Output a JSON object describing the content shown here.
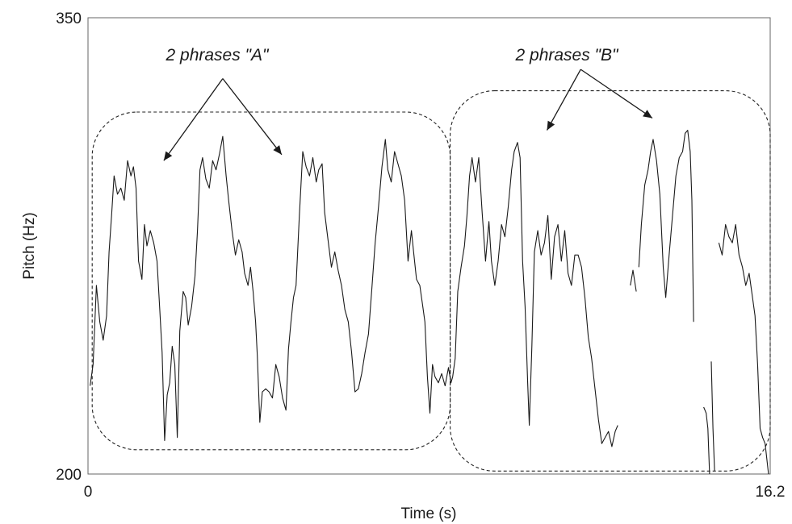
{
  "chart_data": {
    "type": "line",
    "xlabel": "Time (s)",
    "ylabel": "Pitch (Hz)",
    "xlim": [
      0,
      16.2
    ],
    "ylim": [
      200,
      350
    ],
    "x_ticks": [
      "0",
      "16.2"
    ],
    "y_ticks": [
      "200",
      "350"
    ],
    "grid": false,
    "legend": "none",
    "line_color": "#1a1a1a",
    "annotations": [
      {
        "text": "2 phrases \"A\"",
        "region_x": [
          0.1,
          8.6
        ],
        "region_y": [
          208,
          319
        ],
        "arrow_from": [
          3.2,
          330
        ],
        "arrow_targets": [
          [
            1.8,
            303
          ],
          [
            4.6,
            305
          ]
        ]
      },
      {
        "text": "2 phrases \"B\"",
        "region_x": [
          8.6,
          16.2
        ],
        "region_y": [
          201,
          326
        ],
        "arrow_from": [
          11.7,
          333
        ],
        "arrow_targets": [
          [
            10.9,
            313
          ],
          [
            13.4,
            317
          ]
        ]
      }
    ],
    "series": [
      {
        "segments": [
          [
            [
              0.05,
              229
            ],
            [
              0.12,
              236
            ],
            [
              0.2,
              262
            ],
            [
              0.28,
              250
            ],
            [
              0.36,
              244
            ],
            [
              0.44,
              252
            ],
            [
              0.5,
              273
            ],
            [
              0.56,
              285
            ],
            [
              0.62,
              298
            ],
            [
              0.7,
              292
            ],
            [
              0.78,
              294
            ],
            [
              0.86,
              290
            ],
            [
              0.94,
              303
            ],
            [
              1.02,
              298
            ],
            [
              1.08,
              301
            ],
            [
              1.14,
              294
            ],
            [
              1.2,
              270
            ],
            [
              1.28,
              264
            ],
            [
              1.34,
              282
            ],
            [
              1.4,
              275
            ],
            [
              1.48,
              280
            ],
            [
              1.56,
              276
            ],
            [
              1.64,
              270
            ],
            [
              1.7,
              255
            ],
            [
              1.76,
              240
            ],
            [
              1.82,
              211
            ],
            [
              1.88,
              226
            ],
            [
              1.94,
              230
            ],
            [
              2.0,
              242
            ],
            [
              2.06,
              236
            ],
            [
              2.12,
              212
            ],
            [
              2.18,
              247
            ],
            [
              2.26,
              260
            ],
            [
              2.32,
              258
            ],
            [
              2.38,
              249
            ],
            [
              2.46,
              255
            ],
            [
              2.54,
              265
            ],
            [
              2.6,
              280
            ],
            [
              2.66,
              300
            ],
            [
              2.72,
              304
            ],
            [
              2.8,
              297
            ],
            [
              2.88,
              294
            ],
            [
              2.96,
              303
            ],
            [
              3.04,
              300
            ],
            [
              3.12,
              305
            ],
            [
              3.2,
              311
            ],
            [
              3.28,
              298
            ],
            [
              3.34,
              290
            ],
            [
              3.42,
              280
            ],
            [
              3.5,
              272
            ],
            [
              3.58,
              277
            ],
            [
              3.66,
              273
            ],
            [
              3.72,
              266
            ],
            [
              3.8,
              262
            ],
            [
              3.86,
              268
            ],
            [
              3.92,
              260
            ],
            [
              3.98,
              250
            ],
            [
              4.02,
              239
            ],
            [
              4.08,
              217
            ],
            [
              4.14,
              227
            ],
            [
              4.22,
              228
            ],
            [
              4.3,
              227
            ],
            [
              4.38,
              225
            ],
            [
              4.46,
              236
            ],
            [
              4.54,
              232
            ],
            [
              4.62,
              225
            ],
            [
              4.7,
              221
            ],
            [
              4.76,
              241
            ],
            [
              4.82,
              250
            ],
            [
              4.88,
              258
            ],
            [
              4.94,
              262
            ],
            [
              5.02,
              285
            ],
            [
              5.1,
              306
            ],
            [
              5.18,
              301
            ],
            [
              5.26,
              298
            ],
            [
              5.34,
              304
            ],
            [
              5.42,
              296
            ],
            [
              5.48,
              300
            ],
            [
              5.56,
              302
            ],
            [
              5.62,
              286
            ],
            [
              5.7,
              277
            ],
            [
              5.78,
              268
            ],
            [
              5.86,
              273
            ],
            [
              5.94,
              267
            ],
            [
              6.02,
              262
            ],
            [
              6.1,
              254
            ],
            [
              6.18,
              250
            ],
            [
              6.26,
              240
            ],
            [
              6.34,
              227
            ],
            [
              6.42,
              228
            ],
            [
              6.5,
              233
            ],
            [
              6.58,
              240
            ],
            [
              6.66,
              246
            ],
            [
              6.74,
              261
            ],
            [
              6.82,
              276
            ],
            [
              6.9,
              288
            ],
            [
              6.98,
              301
            ],
            [
              7.06,
              310
            ],
            [
              7.12,
              300
            ],
            [
              7.2,
              296
            ],
            [
              7.28,
              306
            ],
            [
              7.36,
              302
            ],
            [
              7.44,
              298
            ],
            [
              7.52,
              290
            ],
            [
              7.6,
              270
            ],
            [
              7.68,
              280
            ],
            [
              7.74,
              272
            ],
            [
              7.8,
              264
            ],
            [
              7.88,
              262
            ],
            [
              7.94,
              256
            ],
            [
              8.0,
              250
            ],
            [
              8.06,
              232
            ],
            [
              8.12,
              220
            ],
            [
              8.18,
              236
            ],
            [
              8.24,
              232
            ],
            [
              8.32,
              230
            ],
            [
              8.4,
              233
            ],
            [
              8.48,
              229
            ],
            [
              8.56,
              235
            ],
            [
              8.62,
              230
            ],
            [
              8.66,
              232
            ]
          ],
          [
            [
              8.66,
              232
            ],
            [
              8.72,
              238
            ],
            [
              8.78,
              260
            ],
            [
              8.86,
              268
            ],
            [
              8.94,
              275
            ],
            [
              9.0,
              285
            ],
            [
              9.06,
              298
            ],
            [
              9.12,
              304
            ],
            [
              9.2,
              296
            ],
            [
              9.28,
              304
            ],
            [
              9.36,
              286
            ],
            [
              9.44,
              270
            ],
            [
              9.52,
              283
            ],
            [
              9.58,
              270
            ],
            [
              9.66,
              262
            ],
            [
              9.74,
              270
            ],
            [
              9.82,
              282
            ],
            [
              9.9,
              278
            ],
            [
              9.98,
              288
            ],
            [
              10.06,
              300
            ],
            [
              10.12,
              306
            ],
            [
              10.2,
              309
            ],
            [
              10.26,
              304
            ],
            [
              10.32,
              270
            ],
            [
              10.38,
              255
            ],
            [
              10.44,
              230
            ],
            [
              10.48,
              216
            ],
            [
              10.54,
              242
            ],
            [
              10.6,
              273
            ],
            [
              10.68,
              280
            ],
            [
              10.76,
              272
            ],
            [
              10.84,
              276
            ],
            [
              10.92,
              285
            ],
            [
              11.0,
              264
            ],
            [
              11.08,
              278
            ],
            [
              11.16,
              282
            ],
            [
              11.24,
              270
            ],
            [
              11.32,
              280
            ],
            [
              11.4,
              266
            ],
            [
              11.48,
              262
            ],
            [
              11.56,
              272
            ],
            [
              11.64,
              272
            ],
            [
              11.72,
              268
            ],
            [
              11.8,
              258
            ],
            [
              11.88,
              245
            ],
            [
              11.96,
              238
            ],
            [
              12.04,
              228
            ],
            [
              12.12,
              218
            ],
            [
              12.2,
              210
            ],
            [
              12.28,
              212
            ],
            [
              12.36,
              214
            ],
            [
              12.44,
              209
            ],
            [
              12.52,
              214
            ],
            [
              12.58,
              216
            ]
          ],
          [
            [
              12.88,
              262
            ],
            [
              12.94,
              267
            ],
            [
              13.02,
              260
            ]
          ],
          [
            [
              13.08,
              268
            ],
            [
              13.14,
              282
            ],
            [
              13.22,
              295
            ],
            [
              13.3,
              300
            ],
            [
              13.36,
              306
            ],
            [
              13.42,
              310
            ],
            [
              13.5,
              303
            ],
            [
              13.58,
              292
            ],
            [
              13.66,
              268
            ],
            [
              13.72,
              258
            ],
            [
              13.8,
              272
            ],
            [
              13.88,
              285
            ],
            [
              13.96,
              298
            ],
            [
              14.04,
              304
            ],
            [
              14.12,
              306
            ],
            [
              14.18,
              312
            ],
            [
              14.24,
              313
            ],
            [
              14.3,
              306
            ],
            [
              14.34,
              290
            ],
            [
              14.38,
              250
            ]
          ],
          [
            [
              14.62,
              222
            ],
            [
              14.68,
              220
            ],
            [
              14.72,
              215
            ],
            [
              14.76,
              200
            ]
          ],
          [
            [
              14.8,
              237
            ],
            [
              14.84,
              215
            ],
            [
              14.88,
              201
            ]
          ],
          [
            [
              14.98,
              276
            ],
            [
              15.06,
              272
            ],
            [
              15.14,
              282
            ],
            [
              15.22,
              278
            ],
            [
              15.3,
              276
            ],
            [
              15.38,
              282
            ],
            [
              15.46,
              272
            ],
            [
              15.54,
              268
            ],
            [
              15.62,
              262
            ],
            [
              15.7,
              266
            ],
            [
              15.78,
              258
            ],
            [
              15.84,
              252
            ],
            [
              15.9,
              236
            ],
            [
              15.96,
              215
            ],
            [
              16.02,
              212
            ],
            [
              16.08,
              210
            ],
            [
              16.12,
              205
            ],
            [
              16.16,
              200
            ]
          ]
        ]
      }
    ]
  }
}
